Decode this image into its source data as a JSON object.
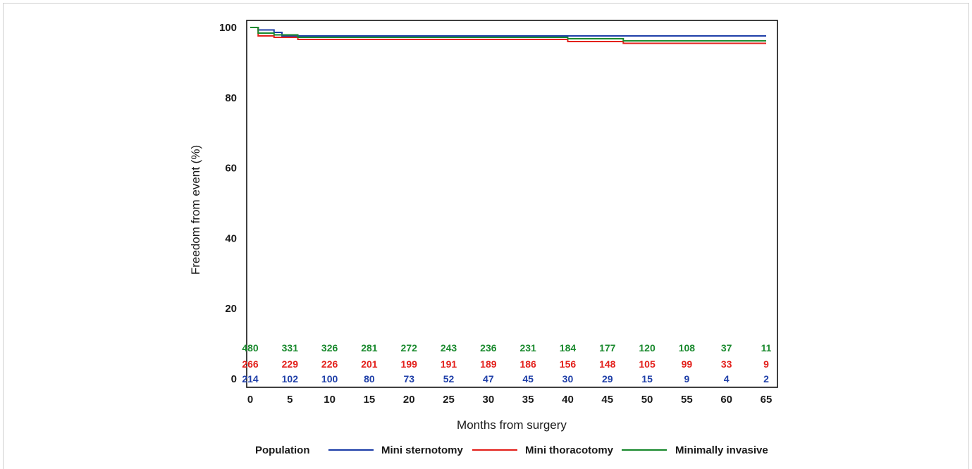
{
  "chart_data": {
    "type": "line",
    "step": true,
    "title": "",
    "xlabel": "Months from surgery",
    "ylabel": "Freedom from event (%)",
    "xlim": [
      0,
      65
    ],
    "ylim": [
      0,
      100
    ],
    "xticks": [
      0,
      5,
      10,
      15,
      20,
      25,
      30,
      35,
      40,
      45,
      50,
      55,
      60,
      65
    ],
    "yticks": [
      0,
      20,
      40,
      60,
      80,
      100
    ],
    "grid": false,
    "legend": {
      "title": "Population",
      "placement": "bottom"
    },
    "series": [
      {
        "name": "Mini sternotomy",
        "color": "#1f3fa8",
        "x": [
          0,
          1,
          3,
          4,
          40,
          65
        ],
        "y": [
          100,
          99.3,
          98.6,
          97.6,
          97.6,
          97.6
        ],
        "at_risk": [
          214,
          102,
          100,
          80,
          73,
          52,
          47,
          45,
          30,
          29,
          15,
          9,
          4,
          2
        ]
      },
      {
        "name": "Mini thoracotomy",
        "color": "#e3211c",
        "x": [
          0,
          1,
          3,
          6,
          40,
          47,
          65
        ],
        "y": [
          100,
          97.6,
          97.2,
          96.6,
          96.0,
          95.5,
          95.5
        ],
        "at_risk": [
          266,
          229,
          226,
          201,
          199,
          191,
          189,
          186,
          156,
          148,
          105,
          99,
          33,
          9
        ]
      },
      {
        "name": "Minimally invasive",
        "color": "#1a8a2e",
        "x": [
          0,
          1,
          3,
          6,
          40,
          47,
          65
        ],
        "y": [
          100,
          98.4,
          97.9,
          97.2,
          96.8,
          96.2,
          96.2
        ],
        "at_risk": [
          480,
          331,
          326,
          281,
          272,
          243,
          236,
          231,
          184,
          177,
          120,
          108,
          37,
          11
        ]
      }
    ]
  }
}
